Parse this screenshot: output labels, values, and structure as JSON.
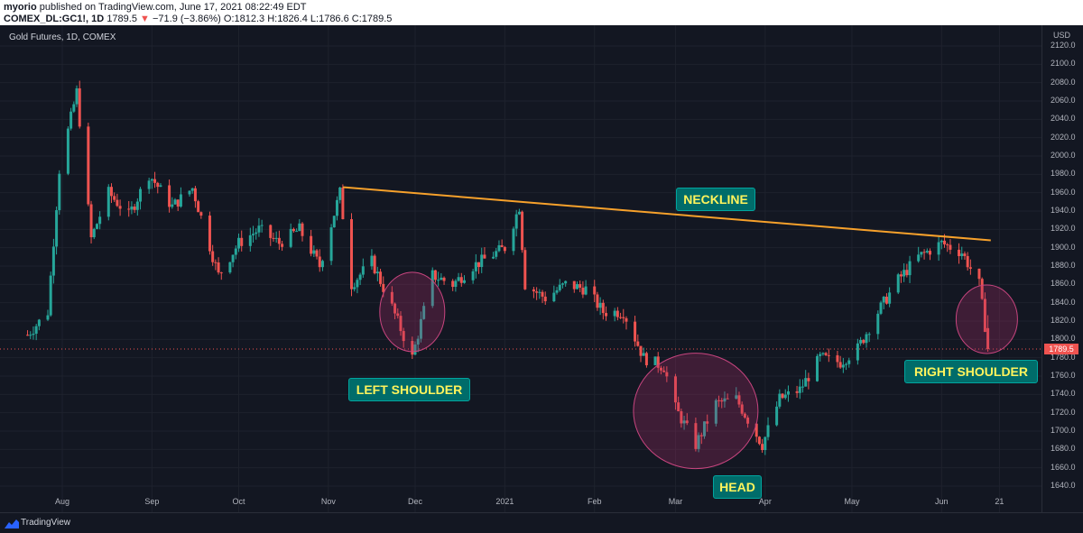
{
  "header": {
    "publisher": "myorio",
    "published_text": "published on TradingView.com, June 17, 2021 08:22:49 EDT",
    "symbol": "COMEX_DL:GC1!, 1D",
    "last": "1789.5",
    "change_arrow": "▼",
    "change": "−71.9 (−3.86%)",
    "ohlc": "O:1812.3 H:1826.4 L:1786.6 C:1789.5"
  },
  "chart_title": "Gold Futures, 1D, COMEX",
  "currency": "USD",
  "price_tag": "1789.5",
  "annotations": {
    "neckline": "NECKLINE",
    "left_shoulder": "LEFT SHOULDER",
    "head": "HEAD",
    "right_shoulder": "RIGHT SHOULDER"
  },
  "footer": {
    "brand": "TradingView"
  },
  "colors": {
    "background": "#131722",
    "up": "#26a69a",
    "down": "#ef5350",
    "neckline": "#f7a12b",
    "label_bg": "#006c6a",
    "label_text": "#fff45c",
    "circle": "#b0306b"
  },
  "chart_data": {
    "type": "candlestick",
    "title": "Gold Futures, 1D, COMEX",
    "ylabel": "USD",
    "ylim": [
      1630,
      2130
    ],
    "y_ticks": [
      "1640.0",
      "1660.0",
      "1680.0",
      "1700.0",
      "1720.0",
      "1740.0",
      "1760.0",
      "1780.0",
      "1800.0",
      "1820.0",
      "1840.0",
      "1860.0",
      "1880.0",
      "1900.0",
      "1920.0",
      "1940.0",
      "1960.0",
      "1980.0",
      "2000.0",
      "2020.0",
      "2040.0",
      "2060.0",
      "2080.0",
      "2100.0",
      "2120.0"
    ],
    "x_ticks": [
      "Aug",
      "Sep",
      "Oct",
      "Nov",
      "Dec",
      "2021",
      "Feb",
      "Mar",
      "Apr",
      "May",
      "Jun",
      "21"
    ],
    "last_close": 1789.5,
    "neckline": {
      "start": {
        "date": "2020-11-06",
        "price": 1966
      },
      "end": {
        "date": "2021-06-18",
        "price": 1908
      }
    },
    "pattern_zones": [
      {
        "name": "LEFT SHOULDER",
        "date": "2020-11-30",
        "price": 1830
      },
      {
        "name": "HEAD",
        "date": "2021-03-08",
        "price": 1722
      },
      {
        "name": "RIGHT SHOULDER",
        "date": "2021-06-16",
        "price": 1822
      }
    ],
    "path": [
      [
        "2020-07-20",
        1805
      ],
      [
        "2020-07-27",
        1830
      ],
      [
        "2020-07-31",
        1985
      ],
      [
        "2020-08-06",
        2070
      ],
      [
        "2020-08-11",
        1910
      ],
      [
        "2020-08-17",
        1960
      ],
      [
        "2020-08-24",
        1935
      ],
      [
        "2020-08-31",
        1980
      ],
      [
        "2020-09-08",
        1945
      ],
      [
        "2020-09-15",
        1965
      ],
      [
        "2020-09-24",
        1870
      ],
      [
        "2020-10-01",
        1905
      ],
      [
        "2020-10-08",
        1920
      ],
      [
        "2020-10-15",
        1905
      ],
      [
        "2020-10-22",
        1920
      ],
      [
        "2020-10-29",
        1880
      ],
      [
        "2020-11-05",
        1960
      ],
      [
        "2020-11-09",
        1860
      ],
      [
        "2020-11-16",
        1885
      ],
      [
        "2020-11-23",
        1835
      ],
      [
        "2020-11-30",
        1780
      ],
      [
        "2020-12-07",
        1870
      ],
      [
        "2020-12-14",
        1860
      ],
      [
        "2020-12-21",
        1880
      ],
      [
        "2021-01-01",
        1900
      ],
      [
        "2021-01-06",
        1945
      ],
      [
        "2021-01-08",
        1860
      ],
      [
        "2021-01-15",
        1845
      ],
      [
        "2021-01-22",
        1860
      ],
      [
        "2021-01-29",
        1855
      ],
      [
        "2021-02-04",
        1830
      ],
      [
        "2021-02-11",
        1830
      ],
      [
        "2021-02-18",
        1780
      ],
      [
        "2021-02-25",
        1770
      ],
      [
        "2021-03-01",
        1725
      ],
      [
        "2021-03-08",
        1685
      ],
      [
        "2021-03-15",
        1730
      ],
      [
        "2021-03-22",
        1735
      ],
      [
        "2021-03-31",
        1685
      ],
      [
        "2021-04-06",
        1735
      ],
      [
        "2021-04-13",
        1745
      ],
      [
        "2021-04-20",
        1780
      ],
      [
        "2021-04-27",
        1775
      ],
      [
        "2021-05-03",
        1790
      ],
      [
        "2021-05-10",
        1830
      ],
      [
        "2021-05-17",
        1865
      ],
      [
        "2021-05-24",
        1890
      ],
      [
        "2021-06-01",
        1905
      ],
      [
        "2021-06-08",
        1895
      ],
      [
        "2021-06-14",
        1860
      ],
      [
        "2021-06-16",
        1815
      ],
      [
        "2021-06-17",
        1789.5
      ]
    ]
  }
}
